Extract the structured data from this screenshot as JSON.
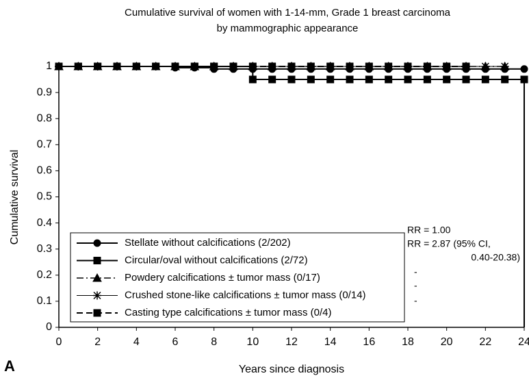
{
  "chart_data": {
    "type": "line",
    "step": "post",
    "title": [
      "Cumulative survival of women with 1-14-mm, Grade 1 breast carcinoma",
      "by mammographic appearance"
    ],
    "xlabel": "Years since diagnosis",
    "ylabel": "Cumulative survival",
    "panel": "A",
    "xlim": [
      0,
      24
    ],
    "xticks": [
      0,
      2,
      4,
      6,
      8,
      10,
      12,
      14,
      16,
      18,
      20,
      22,
      24
    ],
    "ylim": [
      0,
      1
    ],
    "yticks": [
      0,
      0.1,
      0.2,
      0.3,
      0.4,
      0.5,
      0.6,
      0.7,
      0.8,
      0.9,
      1
    ],
    "series": [
      {
        "name": "Stellate without calcifications (2/202)",
        "color": "#000000",
        "dash": "solid",
        "marker": "circle",
        "x": [
          0,
          1,
          2,
          3,
          4,
          5,
          6,
          7,
          8,
          9,
          10,
          11,
          12,
          13,
          14,
          15,
          16,
          17,
          18,
          19,
          20,
          21,
          22,
          23,
          24
        ],
        "values": [
          1,
          1,
          1,
          1,
          1,
          1,
          0.995,
          0.995,
          0.99,
          0.99,
          0.99,
          0.99,
          0.99,
          0.99,
          0.99,
          0.99,
          0.99,
          0.99,
          0.99,
          0.99,
          0.99,
          0.99,
          0.99,
          0.99,
          0.99
        ]
      },
      {
        "name": "Circular/oval without calcifications (2/72)",
        "color": "#000000",
        "dash": "solid",
        "marker": "square",
        "x": [
          0,
          1,
          2,
          3,
          4,
          5,
          6,
          7,
          8,
          9,
          10,
          11,
          12,
          13,
          14,
          15,
          16,
          17,
          18,
          19,
          20,
          21,
          22,
          23,
          24,
          24
        ],
        "values": [
          1,
          1,
          1,
          1,
          1,
          1,
          1,
          1,
          1,
          1,
          0.95,
          0.95,
          0.95,
          0.95,
          0.95,
          0.95,
          0.95,
          0.95,
          0.95,
          0.95,
          0.95,
          0.95,
          0.95,
          0.95,
          0.95,
          0
        ]
      },
      {
        "name": "Powdery calcifications ± tumor mass (0/17)",
        "color": "#000000",
        "dash": "dashdot",
        "marker": "triangle",
        "x": [
          0,
          1,
          2,
          3,
          4,
          5,
          6,
          7,
          8,
          9,
          10,
          11,
          12,
          13,
          14,
          15,
          16,
          17,
          18,
          19,
          20,
          21,
          22,
          23
        ],
        "values": [
          1,
          1,
          1,
          1,
          1,
          1,
          1,
          1,
          1,
          1,
          1,
          1,
          1,
          1,
          1,
          1,
          1,
          1,
          1,
          1,
          1,
          1,
          1,
          1
        ]
      },
      {
        "name": "Crushed stone-like calcifications ± tumor mass (0/14)",
        "color": "#000000",
        "dash": "thin",
        "marker": "asterisk",
        "x": [
          0,
          1,
          2,
          3,
          4,
          5,
          6,
          7,
          8,
          9,
          10,
          11,
          12,
          13,
          14,
          15,
          16,
          17,
          18,
          19,
          20,
          21,
          22,
          23
        ],
        "values": [
          1,
          1,
          1,
          1,
          1,
          1,
          1,
          1,
          1,
          1,
          1,
          1,
          1,
          1,
          1,
          1,
          1,
          1,
          1,
          1,
          1,
          1,
          1,
          1
        ]
      },
      {
        "name": "Casting type calcifications ± tumor mass (0/4)",
        "color": "#000000",
        "dash": "dashed",
        "marker": "square",
        "x": [
          0,
          1,
          2,
          3,
          4,
          5,
          6,
          7,
          8,
          9,
          10,
          11,
          12,
          13,
          14,
          15,
          16,
          17,
          18,
          19,
          20,
          21
        ],
        "values": [
          1,
          1,
          1,
          1,
          1,
          1,
          1,
          1,
          1,
          1,
          1,
          1,
          1,
          1,
          1,
          1,
          1,
          1,
          1,
          1,
          1,
          1
        ]
      }
    ],
    "annotations": [
      "RR = 1.00",
      "RR = 2.87 (95% CI,",
      "0.40-20.38)",
      "-",
      "-",
      "-"
    ]
  }
}
